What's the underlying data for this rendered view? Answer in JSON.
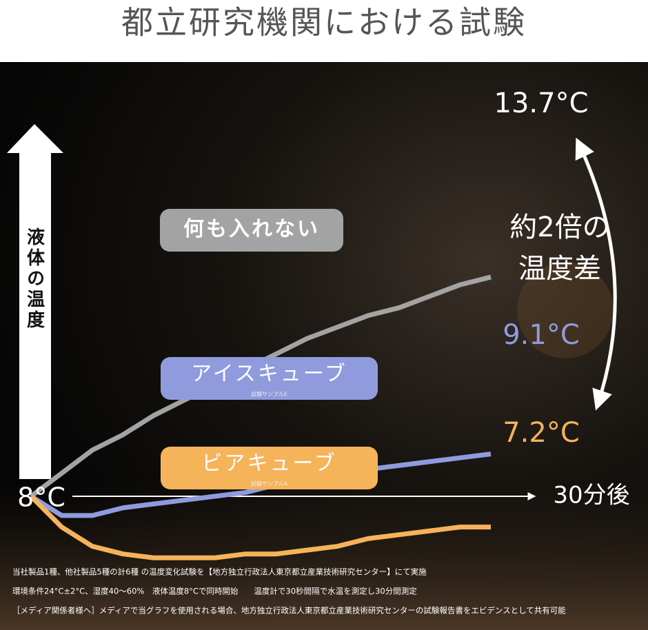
{
  "chart_data": {
    "type": "line",
    "title": "都立研究機関における試験",
    "y_label": "液体の温度",
    "x_label": "30分後",
    "start_label": "8°C",
    "annotation": [
      "約2倍の",
      "温度差"
    ],
    "x": [
      0,
      2,
      4,
      6,
      8,
      10,
      12,
      14,
      16,
      18,
      20,
      22,
      24,
      26,
      28,
      30
    ],
    "xlim": [
      0,
      30
    ],
    "ylim": [
      5,
      19
    ],
    "series": [
      {
        "name": "何も入れない",
        "color": "#a3a3a3",
        "end_label": "13.7°C",
        "label_color": "#ffffff",
        "values": [
          8.0,
          8.6,
          9.2,
          9.6,
          10.1,
          10.5,
          10.9,
          11.3,
          11.7,
          12.1,
          12.4,
          12.7,
          12.9,
          13.2,
          13.5,
          13.7
        ]
      },
      {
        "name": "アイスキューブ",
        "sample": "試験サンプルE",
        "color": "#8f9bdc",
        "end_label": "9.1°C",
        "label_color": "#8f9bdc",
        "values": [
          8.0,
          7.5,
          7.5,
          7.7,
          7.8,
          7.9,
          8.0,
          8.1,
          8.3,
          8.4,
          8.5,
          8.7,
          8.8,
          8.9,
          9.0,
          9.1
        ]
      },
      {
        "name": "ビアキューブ",
        "sample": "試験サンプルA",
        "color": "#f5b35a",
        "end_label": "7.2°C",
        "label_color": "#f5b35a",
        "values": [
          8.0,
          7.2,
          6.7,
          6.5,
          6.4,
          6.4,
          6.4,
          6.5,
          6.5,
          6.6,
          6.7,
          6.9,
          7.0,
          7.1,
          7.2,
          7.2
        ]
      }
    ],
    "notes": [
      "当社製品1種、他社製品5種の計6種 の温度変化試験を【地方独立行政法人東京都立産業技術研究センター】にて実施",
      "環境条件24°C±2°C、湿度40～60%　液体温度8°Cで同時開始　　温度計で30秒間隔で水温を測定し30分間測定",
      "［メディア関係者様へ］メディアで当グラフを使用される場合、地方独立行政法人東京都立産業技術研究センターの試験報告書をエビデンスとして共有可能"
    ]
  }
}
